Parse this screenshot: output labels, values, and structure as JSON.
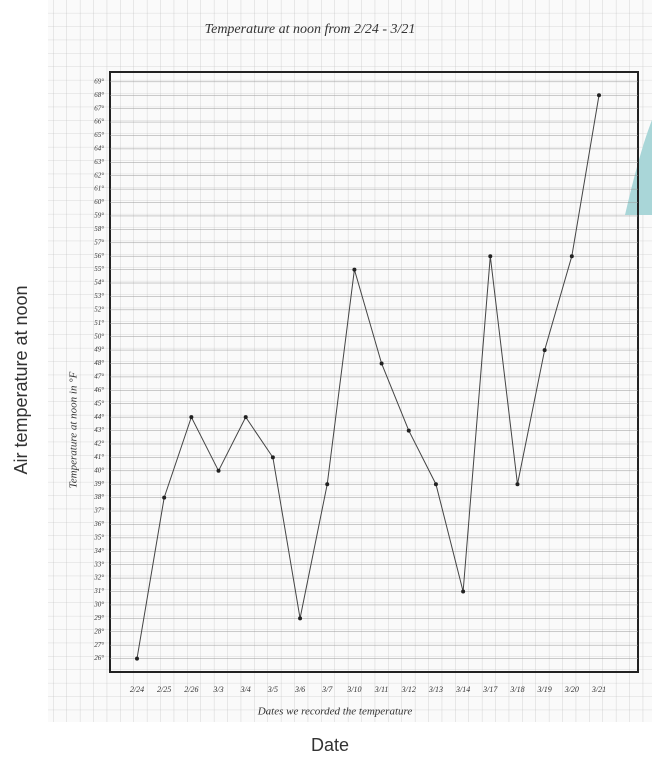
{
  "chart_data": {
    "type": "line",
    "title": "Temperature at noon from 2/24 - 3/21",
    "y_label": "Temperature at noon in °F",
    "x_label": "Dates we recorded the temperature",
    "outer_y_label": "Air temperature at noon",
    "outer_x_label": "Date",
    "categories": [
      "2/24",
      "2/25",
      "2/26",
      "3/3",
      "3/4",
      "3/5",
      "3/6",
      "3/7",
      "3/10",
      "3/11",
      "3/12",
      "3/13",
      "3/14",
      "3/17",
      "3/18",
      "3/19",
      "3/20",
      "3/21"
    ],
    "values": [
      26,
      38,
      44,
      40,
      44,
      41,
      29,
      39,
      55,
      48,
      43,
      39,
      31,
      56,
      39,
      49,
      56,
      68
    ],
    "color": "#444444",
    "ylim": [
      25,
      71
    ],
    "yticks": [
      {
        "value": 26,
        "label": "26°"
      },
      {
        "value": 27,
        "label": "27°"
      },
      {
        "value": 28,
        "label": "28°"
      },
      {
        "value": 29,
        "label": "29°"
      },
      {
        "value": 30,
        "label": "30°"
      },
      {
        "value": 31,
        "label": "31°"
      },
      {
        "value": 32,
        "label": "32°"
      },
      {
        "value": 33,
        "label": "33°"
      },
      {
        "value": 34,
        "label": "34°"
      },
      {
        "value": 35,
        "label": "35°"
      },
      {
        "value": 36,
        "label": "36°"
      },
      {
        "value": 37,
        "label": "37°"
      },
      {
        "value": 38,
        "label": "38°"
      },
      {
        "value": 39,
        "label": "39°"
      },
      {
        "value": 40,
        "label": "40°"
      },
      {
        "value": 41,
        "label": "41°"
      },
      {
        "value": 42,
        "label": "42°"
      },
      {
        "value": 43,
        "label": "43°"
      },
      {
        "value": 44,
        "label": "44°"
      },
      {
        "value": 45,
        "label": "45°"
      },
      {
        "value": 46,
        "label": "46°"
      },
      {
        "value": 47,
        "label": "47°"
      },
      {
        "value": 48,
        "label": "48°"
      },
      {
        "value": 49,
        "label": "49°"
      },
      {
        "value": 50,
        "label": "50°"
      },
      {
        "value": 51,
        "label": "51°"
      },
      {
        "value": 52,
        "label": "52°"
      },
      {
        "value": 53,
        "label": "53°"
      },
      {
        "value": 54,
        "label": "54°"
      },
      {
        "value": 55,
        "label": "55°"
      },
      {
        "value": 56,
        "label": "56°"
      },
      {
        "value": 57,
        "label": "57°"
      },
      {
        "value": 58,
        "label": "58°"
      },
      {
        "value": 59,
        "label": "59°"
      },
      {
        "value": 60,
        "label": "60°"
      },
      {
        "value": 61,
        "label": "61°"
      },
      {
        "value": 62,
        "label": "62°"
      },
      {
        "value": 63,
        "label": "63°"
      },
      {
        "value": 64,
        "label": "64°"
      },
      {
        "value": 65,
        "label": "65°"
      },
      {
        "value": 66,
        "label": "66°"
      },
      {
        "value": 67,
        "label": "67°"
      },
      {
        "value": 68,
        "label": "68°"
      },
      {
        "value": 69,
        "label": "69°"
      }
    ],
    "grid": true
  }
}
